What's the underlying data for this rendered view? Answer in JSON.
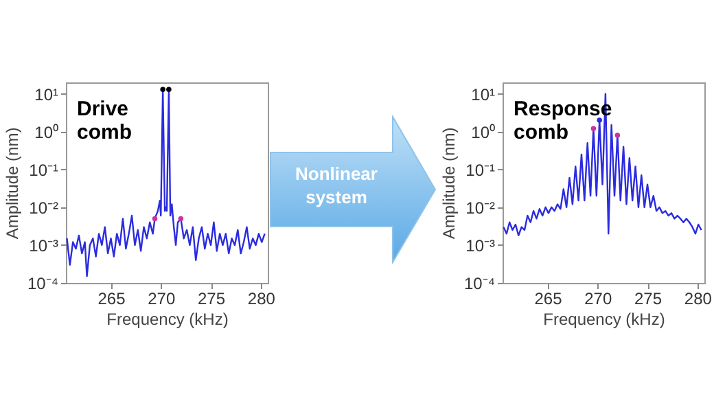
{
  "chart_data": [
    {
      "type": "line",
      "xlabel": "Frequency (kHz)",
      "ylabel": "Amplitude (nm)",
      "annotations": [
        "Drive comb"
      ],
      "log": "y",
      "xlim": [
        260.5,
        280.7
      ],
      "xticks": [
        265,
        270,
        275,
        280
      ],
      "ylim": [
        0.0001,
        20
      ],
      "yticks": [
        {
          "value": 0.0001,
          "label": "10⁻⁴"
        },
        {
          "value": 0.001,
          "label": "10⁻³"
        },
        {
          "value": 0.01,
          "label": "10⁻²"
        },
        {
          "value": 0.1,
          "label": "10⁻¹"
        },
        {
          "value": 1,
          "label": "10⁰"
        },
        {
          "value": 10,
          "label": "10¹"
        }
      ],
      "series": [
        {
          "color": "#2b2be0",
          "x": [
            260.6,
            260.9,
            261.2,
            261.5,
            261.8,
            262.1,
            262.4,
            262.6,
            262.9,
            263.2,
            263.5,
            263.8,
            264.1,
            264.4,
            264.7,
            265.0,
            265.3,
            265.6,
            265.9,
            266.2,
            266.5,
            266.8,
            267.1,
            267.4,
            267.7,
            268.0,
            268.3,
            268.6,
            268.9,
            269.2,
            269.4,
            269.7,
            269.9,
            270.0,
            270.2,
            270.4,
            270.5,
            270.6,
            270.8,
            270.95,
            271.1,
            271.3,
            271.5,
            271.7,
            272.0,
            272.3,
            272.6,
            272.9,
            273.2,
            273.5,
            273.8,
            274.1,
            274.4,
            274.7,
            275.0,
            275.3,
            275.6,
            275.9,
            276.2,
            276.5,
            276.8,
            277.1,
            277.4,
            277.7,
            278.0,
            278.3,
            278.6,
            278.9,
            279.2,
            279.5,
            279.8,
            280.1,
            280.4
          ],
          "values": [
            0.0015,
            0.0003,
            0.0012,
            0.0008,
            0.0018,
            0.0006,
            0.0012,
            0.00015,
            0.001,
            0.0015,
            0.0005,
            0.002,
            0.001,
            0.003,
            0.0006,
            0.0015,
            0.0005,
            0.002,
            0.001,
            0.005,
            0.0008,
            0.002,
            0.006,
            0.001,
            0.0025,
            0.0007,
            0.003,
            0.0015,
            0.004,
            0.002,
            0.005,
            0.008,
            0.015,
            0.006,
            13,
            0.008,
            0.01,
            0.008,
            13,
            0.006,
            0.012,
            0.003,
            0.001,
            0.004,
            0.005,
            0.0015,
            0.0025,
            0.001,
            0.003,
            0.0004,
            0.0015,
            0.003,
            0.0008,
            0.002,
            0.001,
            0.004,
            0.0007,
            0.002,
            0.001,
            0.002,
            0.0006,
            0.0015,
            0.001,
            0.0025,
            0.0006,
            0.0012,
            0.003,
            0.0008,
            0.0015,
            0.001,
            0.002,
            0.0012,
            0.002
          ]
        },
        {
          "type": "scatter",
          "color": "#000000",
          "x": [
            270.2,
            270.8
          ],
          "values": [
            13,
            13
          ]
        },
        {
          "type": "scatter",
          "color": "#cc3399",
          "x": [
            269.4,
            272.0
          ],
          "values": [
            0.005,
            0.005
          ]
        }
      ]
    },
    {
      "type": "other",
      "annotations": [
        "Nonlinear system"
      ]
    },
    {
      "type": "line",
      "xlabel": "Frequency (kHz)",
      "ylabel": "Amplitude (nm)",
      "annotations": [
        "Response comb"
      ],
      "log": "y",
      "xlim": [
        260.5,
        280.7
      ],
      "xticks": [
        265,
        270,
        275,
        280
      ],
      "ylim": [
        0.0001,
        20
      ],
      "yticks": [
        {
          "value": 0.0001,
          "label": "10⁻⁴"
        },
        {
          "value": 0.001,
          "label": "10⁻³"
        },
        {
          "value": 0.01,
          "label": "10⁻²"
        },
        {
          "value": 0.1,
          "label": "10⁻¹"
        },
        {
          "value": 1,
          "label": "10⁰"
        },
        {
          "value": 10,
          "label": "10¹"
        }
      ],
      "series": [
        {
          "color": "#2b2be0",
          "x": [
            260.6,
            260.9,
            261.2,
            261.5,
            261.8,
            262.1,
            262.4,
            262.7,
            263.0,
            263.3,
            263.6,
            263.9,
            264.2,
            264.5,
            264.8,
            265.1,
            265.4,
            265.7,
            266.0,
            266.3,
            266.6,
            266.9,
            267.2,
            267.5,
            267.8,
            268.1,
            268.4,
            268.7,
            269.0,
            269.3,
            269.6,
            269.9,
            270.2,
            270.5,
            270.8,
            271.1,
            271.4,
            271.7,
            272.0,
            272.3,
            272.6,
            272.9,
            273.2,
            273.5,
            273.8,
            274.1,
            274.4,
            274.7,
            275.0,
            275.3,
            275.6,
            275.9,
            276.2,
            276.5,
            276.8,
            277.1,
            277.4,
            277.7,
            278.0,
            278.3,
            278.6,
            278.9,
            279.2,
            279.5,
            279.8,
            280.1,
            280.4
          ],
          "values": [
            0.003,
            0.002,
            0.004,
            0.0025,
            0.0035,
            0.0018,
            0.003,
            0.0025,
            0.006,
            0.004,
            0.008,
            0.005,
            0.009,
            0.006,
            0.01,
            0.007,
            0.01,
            0.008,
            0.012,
            0.009,
            0.03,
            0.01,
            0.06,
            0.012,
            0.12,
            0.015,
            0.25,
            0.015,
            0.5,
            0.02,
            1.2,
            0.02,
            2,
            0.04,
            10,
            0.002,
            1.5,
            0.02,
            0.8,
            0.015,
            0.4,
            0.012,
            0.2,
            0.015,
            0.12,
            0.01,
            0.07,
            0.01,
            0.04,
            0.01,
            0.02,
            0.008,
            0.01,
            0.007,
            0.008,
            0.006,
            0.007,
            0.005,
            0.006,
            0.005,
            0.004,
            0.005,
            0.004,
            0.003,
            0.002,
            0.0035,
            0.0025
          ]
        },
        {
          "type": "scatter",
          "color": "#2b2be0",
          "x": [
            270.2
          ],
          "values": [
            2
          ]
        },
        {
          "type": "scatter",
          "color": "#cc3399",
          "x": [
            269.6,
            272.0
          ],
          "values": [
            1.2,
            0.8
          ]
        }
      ]
    }
  ]
}
